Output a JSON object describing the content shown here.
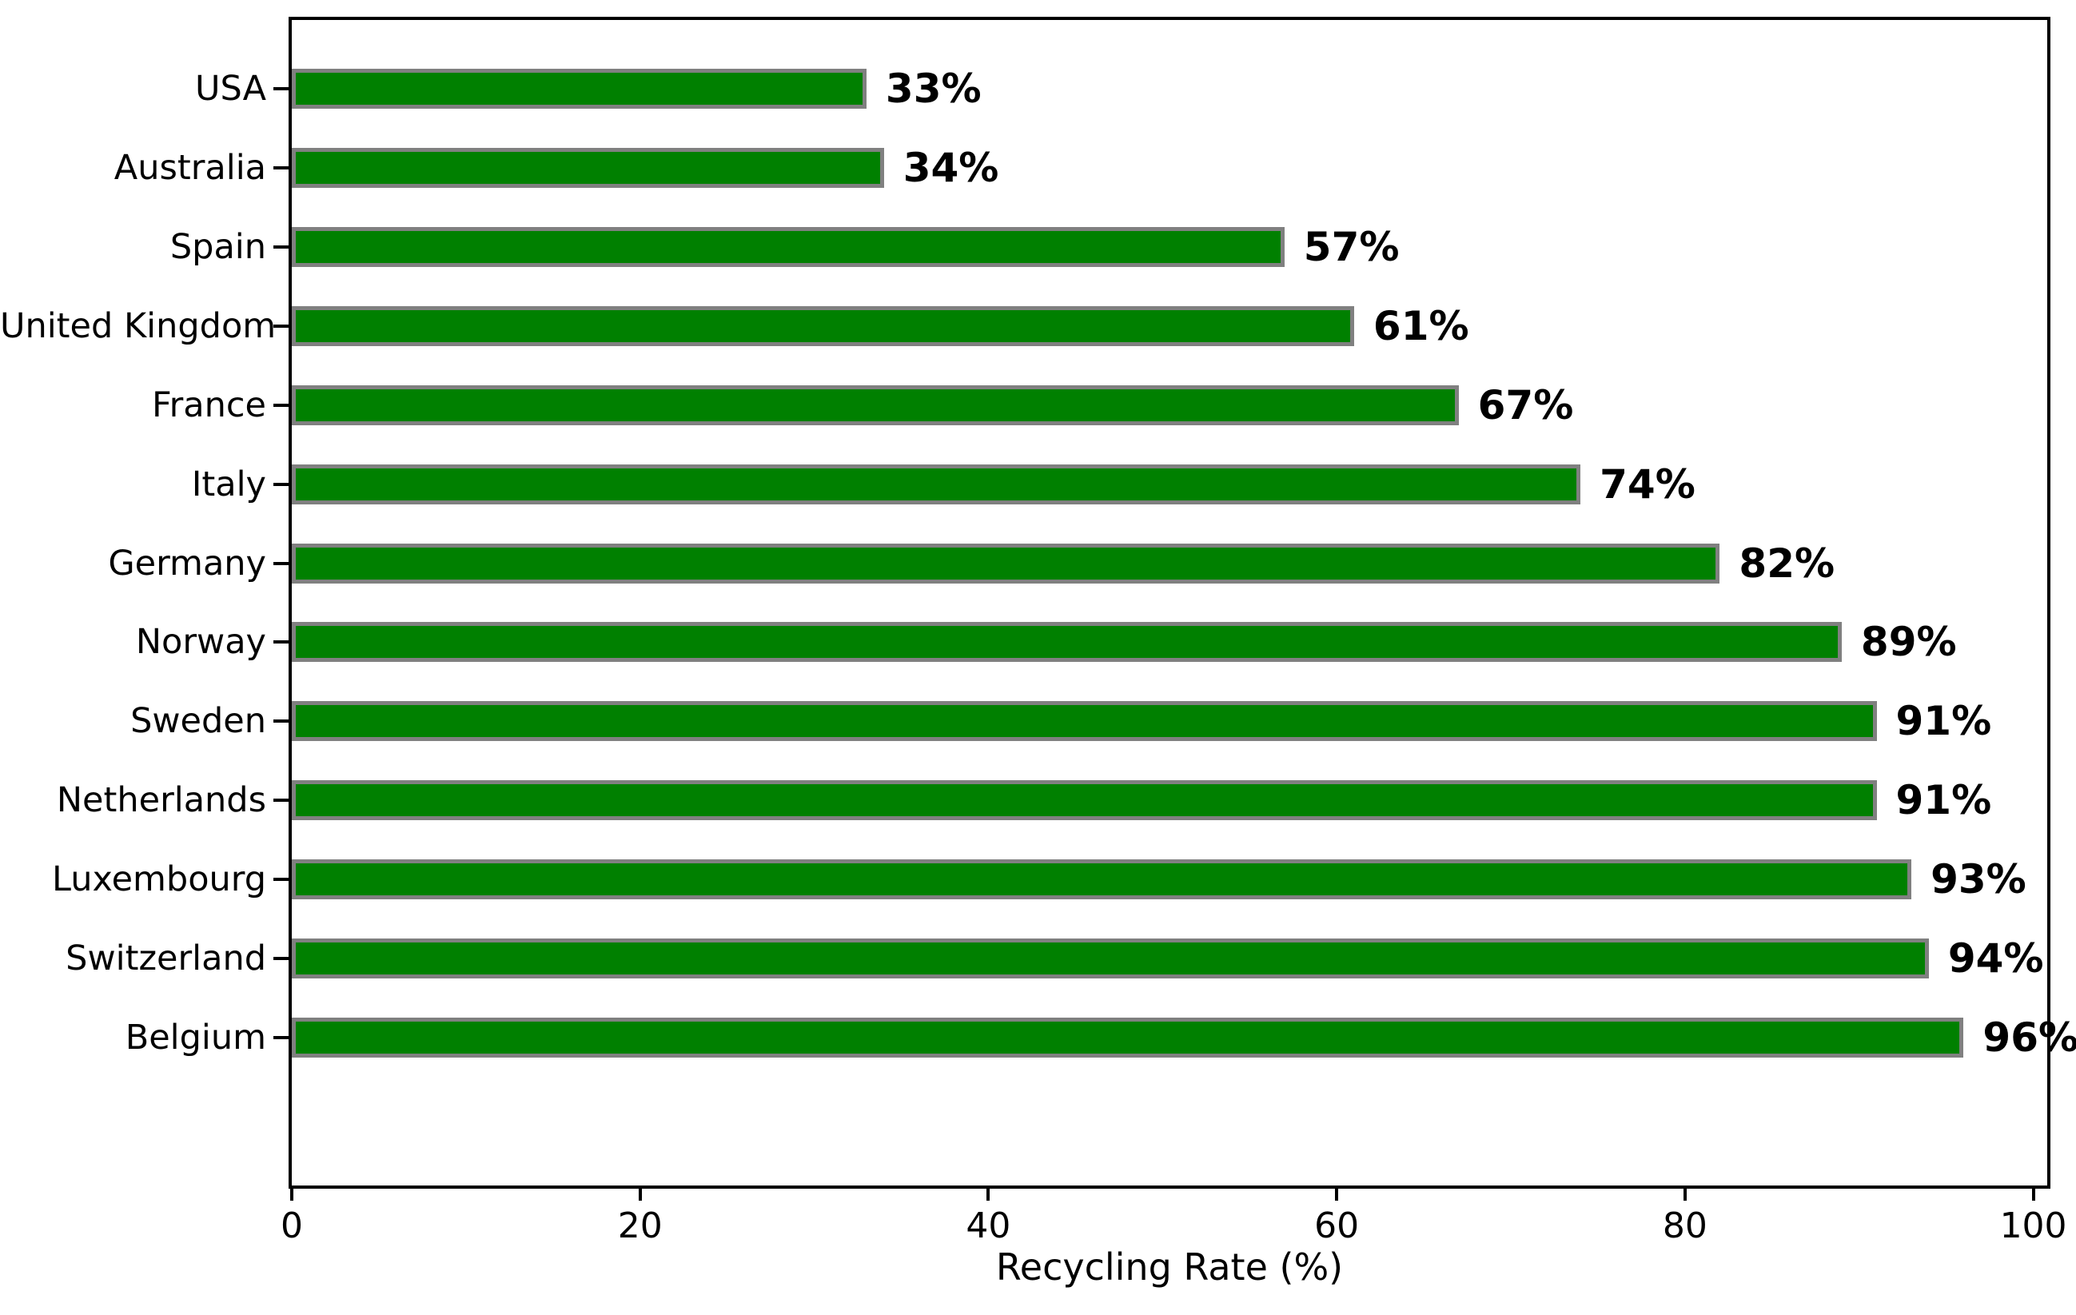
{
  "chart_data": {
    "type": "bar",
    "orientation": "horizontal",
    "title": "",
    "xlabel": "Recycling Rate (%)",
    "ylabel": "",
    "categories": [
      "USA",
      "Australia",
      "Spain",
      "United Kingdom",
      "France",
      "Italy",
      "Germany",
      "Norway",
      "Sweden",
      "Netherlands",
      "Luxembourg",
      "Switzerland",
      "Belgium"
    ],
    "values": [
      33,
      34,
      57,
      61,
      67,
      74,
      82,
      89,
      91,
      91,
      93,
      94,
      96
    ],
    "bar_labels": [
      "33%",
      "34%",
      "57%",
      "61%",
      "67%",
      "74%",
      "82%",
      "89%",
      "91%",
      "91%",
      "93%",
      "94%",
      "96%"
    ],
    "x_ticks": [
      0,
      20,
      40,
      60,
      80,
      100
    ],
    "xlim": [
      0,
      100.8
    ],
    "grid": false,
    "legend": null,
    "colors": {
      "bar_fill": "#008000",
      "bar_edge": "#808080",
      "text": "#000000",
      "axis": "#000000",
      "background": "#ffffff"
    }
  }
}
